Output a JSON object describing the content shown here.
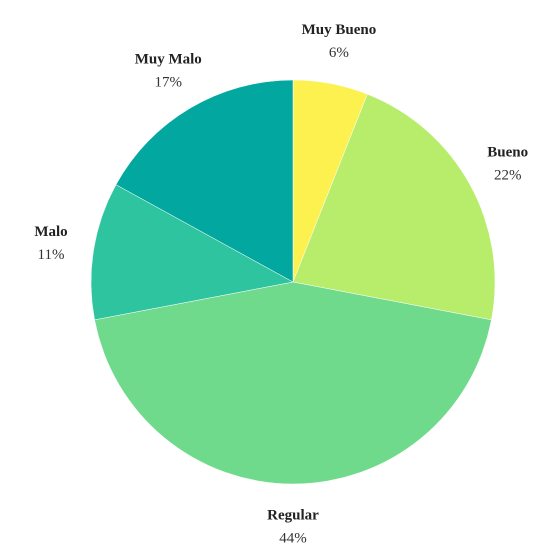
{
  "chart_data": {
    "type": "pie",
    "categories": [
      "Muy Bueno",
      "Bueno",
      "Regular",
      "Malo",
      "Muy Malo"
    ],
    "values": [
      6,
      22,
      44,
      11,
      17
    ],
    "value_labels": [
      "6%",
      "22%",
      "44%",
      "11%",
      "17%"
    ],
    "colors": [
      "#fdf150",
      "#b7ed6b",
      "#6fda8b",
      "#2ec4a0",
      "#02a89f"
    ]
  }
}
